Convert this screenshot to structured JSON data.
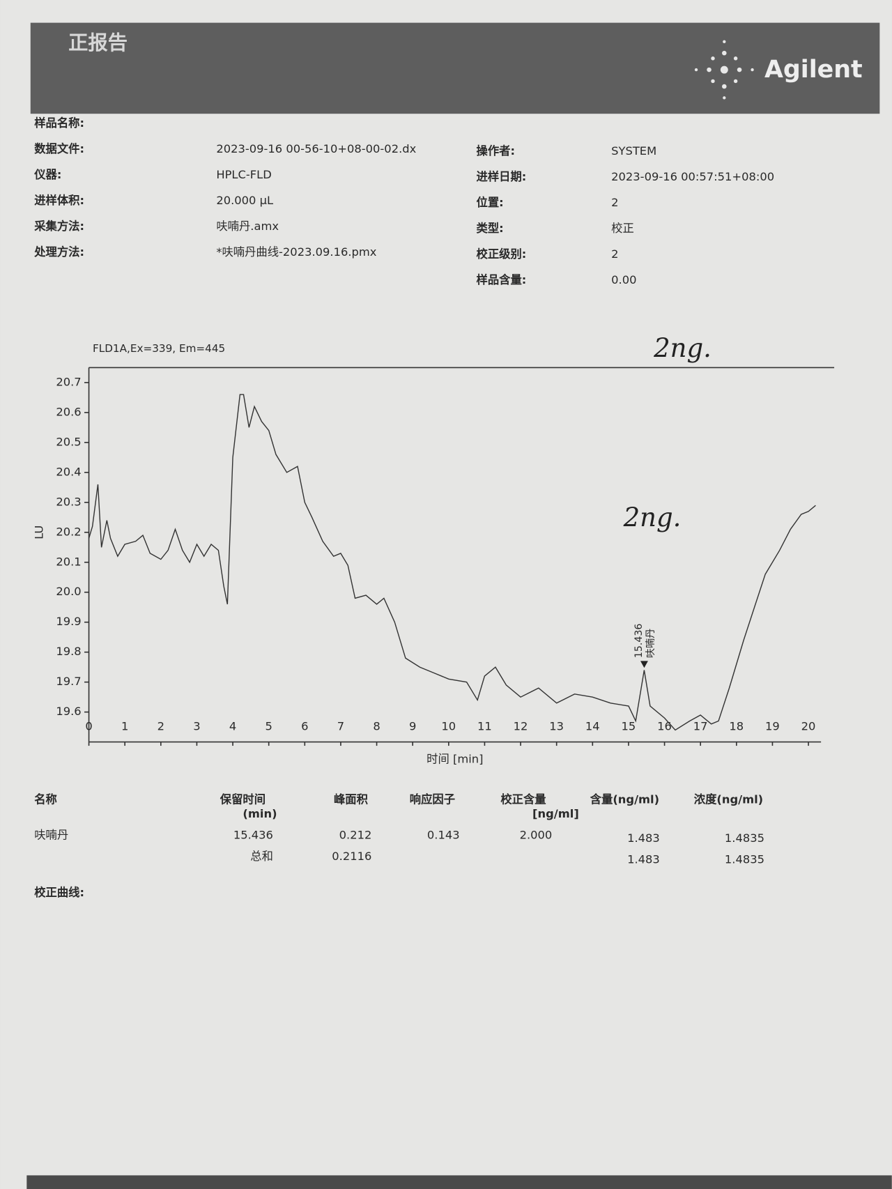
{
  "header": {
    "title": "正报告",
    "logo": "Agilent"
  },
  "info": {
    "left": [
      {
        "label": "样品名称:"
      },
      {
        "label": "数据文件:",
        "value": "2023-09-16 00-56-10+08-00-02.dx"
      },
      {
        "label": "仪器:",
        "value": "HPLC-FLD"
      },
      {
        "label": "进样体积:",
        "value": "20.000 µL"
      },
      {
        "label": "采集方法:",
        "value": "呋喃丹.amx"
      },
      {
        "label": "处理方法:",
        "value": "*呋喃丹曲线-2023.09.16.pmx"
      }
    ],
    "right": [
      {
        "label": "操作者:",
        "value": "SYSTEM"
      },
      {
        "label": "进样日期:",
        "value": "2023-09-16 00:57:51+08:00"
      },
      {
        "label": "位置:",
        "value": "2"
      },
      {
        "label": "类型:",
        "value": "校正"
      },
      {
        "label": "校正级别:",
        "value": "2"
      },
      {
        "label": "样品含量:",
        "value": "0.00"
      }
    ]
  },
  "chart_data": {
    "type": "line",
    "title": "FLD1A,Ex=339, Em=445",
    "x_label": "时间 [min]",
    "y_label": "LU",
    "color": "#333333",
    "x": [
      0,
      0.1,
      0.25,
      0.35,
      0.5,
      0.6,
      0.8,
      1.0,
      1.3,
      1.5,
      1.7,
      2.0,
      2.2,
      2.4,
      2.6,
      2.8,
      3.0,
      3.2,
      3.4,
      3.6,
      3.75,
      3.85,
      4.0,
      4.2,
      4.3,
      4.45,
      4.6,
      4.8,
      5.0,
      5.2,
      5.5,
      5.8,
      6.0,
      6.2,
      6.5,
      6.8,
      7.0,
      7.2,
      7.4,
      7.7,
      8.0,
      8.2,
      8.5,
      8.8,
      9.2,
      9.6,
      10.0,
      10.5,
      10.8,
      11.0,
      11.3,
      11.6,
      12.0,
      12.5,
      13.0,
      13.5,
      14.0,
      14.5,
      15.0,
      15.2,
      15.436,
      15.6,
      16.0,
      16.3,
      16.7,
      17.0,
      17.3,
      17.5,
      17.8,
      18.2,
      18.5,
      18.8,
      19.2,
      19.5,
      19.8,
      20.0,
      20.2
    ],
    "values": [
      20.18,
      20.22,
      20.36,
      20.15,
      20.24,
      20.18,
      20.12,
      20.16,
      20.17,
      20.19,
      20.13,
      20.11,
      20.14,
      20.21,
      20.14,
      20.1,
      20.16,
      20.12,
      20.16,
      20.14,
      20.02,
      19.96,
      20.45,
      20.66,
      20.66,
      20.55,
      20.62,
      20.57,
      20.54,
      20.46,
      20.4,
      20.42,
      20.3,
      20.25,
      20.17,
      20.12,
      20.13,
      20.09,
      19.98,
      19.99,
      19.96,
      19.98,
      19.9,
      19.78,
      19.75,
      19.73,
      19.71,
      19.7,
      19.64,
      19.72,
      19.75,
      19.69,
      19.65,
      19.68,
      19.63,
      19.66,
      19.65,
      19.63,
      19.62,
      19.57,
      19.74,
      19.62,
      19.58,
      19.54,
      19.57,
      19.59,
      19.56,
      19.57,
      19.68,
      19.84,
      19.95,
      20.06,
      20.14,
      20.21,
      20.26,
      20.27,
      20.29
    ],
    "xlim": [
      0,
      20.35
    ],
    "ylim": [
      19.5,
      20.75
    ],
    "xticks": [
      0,
      1,
      2,
      3,
      4,
      5,
      6,
      7,
      8,
      9,
      10,
      11,
      12,
      13,
      14,
      15,
      16,
      17,
      18,
      19,
      20
    ],
    "yticks": [
      19.6,
      19.7,
      19.8,
      19.9,
      {
        "value": 20,
        "label": "20.0"
      },
      20.1,
      20.2,
      20.3,
      20.4,
      20.5,
      20.6,
      20.7
    ],
    "peak": {
      "x": 15.436,
      "y": 19.74,
      "label": "15.436",
      "name": "呋喃丹"
    },
    "annotations": [
      "2ng.",
      "2ng."
    ]
  },
  "table": {
    "headers": [
      [
        "名称"
      ],
      [
        "保留时间",
        "(min)"
      ],
      [
        "峰面积"
      ],
      [
        "响应因子"
      ],
      [
        "校正含量",
        "[ng/ml]"
      ],
      [
        "含量(ng/ml)"
      ],
      [
        "浓度(ng/ml)"
      ]
    ],
    "rows": [
      [
        "呋喃丹",
        "15.436",
        "0.212",
        "0.143",
        "2.000",
        "1.483",
        "1.4835"
      ],
      [
        null,
        "总和",
        "0.2116",
        null,
        null,
        "1.483",
        "1.4835"
      ]
    ]
  },
  "section": "校正曲线:"
}
